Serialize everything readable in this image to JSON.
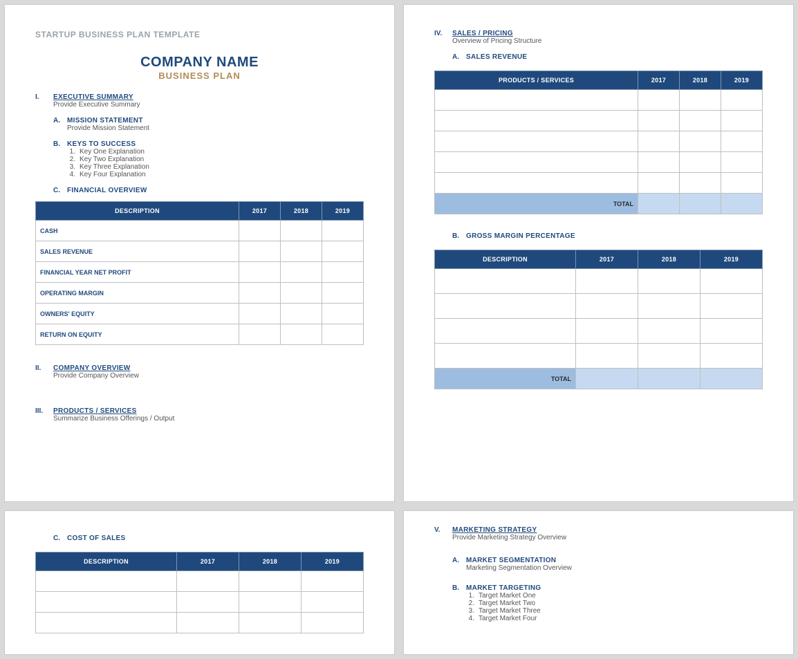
{
  "colors": {
    "page_bg": "#ffffff",
    "canvas_bg": "#d9d9d9",
    "header_navy": "#1f497d",
    "accent_tan": "#b48a56",
    "total_row_bg": "#9dbde0",
    "total_row_bg_light": "#c5daf1",
    "template_title_gray": "#9aa2a8",
    "cell_border": "#bfbfbf"
  },
  "template_title": "STARTUP BUSINESS PLAN TEMPLATE",
  "company_name": "COMPANY NAME",
  "plan_subtitle": "BUSINESS PLAN",
  "years": [
    "2017",
    "2018",
    "2019"
  ],
  "sec1": {
    "roman": "I.",
    "title": "EXECUTIVE SUMMARY",
    "desc": "Provide Executive Summary",
    "a": {
      "letter": "A.",
      "title": "MISSION STATEMENT",
      "desc": "Provide Mission Statement"
    },
    "b": {
      "letter": "B.",
      "title": "KEYS TO SUCCESS",
      "items": [
        "Key One Explanation",
        "Key Two Explanation",
        "Key Three Explanation",
        "Key Four Explanation"
      ]
    },
    "c": {
      "letter": "C.",
      "title": "FINANCIAL OVERVIEW"
    }
  },
  "fin_overview_table": {
    "headers": {
      "desc": "DESCRIPTION"
    },
    "rows": [
      "CASH",
      "SALES REVENUE",
      "FINANCIAL YEAR NET PROFIT",
      "OPERATING MARGIN",
      "OWNERS' EQUITY",
      "RETURN ON EQUITY"
    ]
  },
  "sec2": {
    "roman": "II.",
    "title": "COMPANY OVERVIEW",
    "desc": "Provide Company Overview"
  },
  "sec3": {
    "roman": "III.",
    "title": "PRODUCTS / SERVICES",
    "desc": "Summarize Business Offerings / Output"
  },
  "sec4": {
    "roman": "IV.",
    "title": "SALES / PRICING",
    "desc": "Overview of Pricing Structure",
    "a": {
      "letter": "A.",
      "title": "SALES REVENUE"
    },
    "b": {
      "letter": "B.",
      "title": "GROSS MARGIN PERCENTAGE"
    }
  },
  "sales_revenue_table": {
    "headers": {
      "desc": "PRODUCTS / SERVICES"
    },
    "blank_rows": 5,
    "total_label": "TOTAL"
  },
  "gross_margin_table": {
    "headers": {
      "desc": "DESCRIPTION"
    },
    "blank_rows": 4,
    "total_label": "TOTAL"
  },
  "sec_c_cost": {
    "letter": "C.",
    "title": "COST OF SALES"
  },
  "cost_of_sales_table": {
    "headers": {
      "desc": "DESCRIPTION"
    },
    "blank_rows": 3
  },
  "sec5": {
    "roman": "V.",
    "title": "MARKETING STRATEGY",
    "desc": "Provide Marketing Strategy Overview",
    "a": {
      "letter": "A.",
      "title": "MARKET SEGMENTATION",
      "desc": "Marketing Segmentation Overview"
    },
    "b": {
      "letter": "B.",
      "title": "MARKET TARGETING",
      "items": [
        "Target Market One",
        "Target Market Two",
        "Target Market Three",
        "Target Market Four"
      ]
    }
  }
}
